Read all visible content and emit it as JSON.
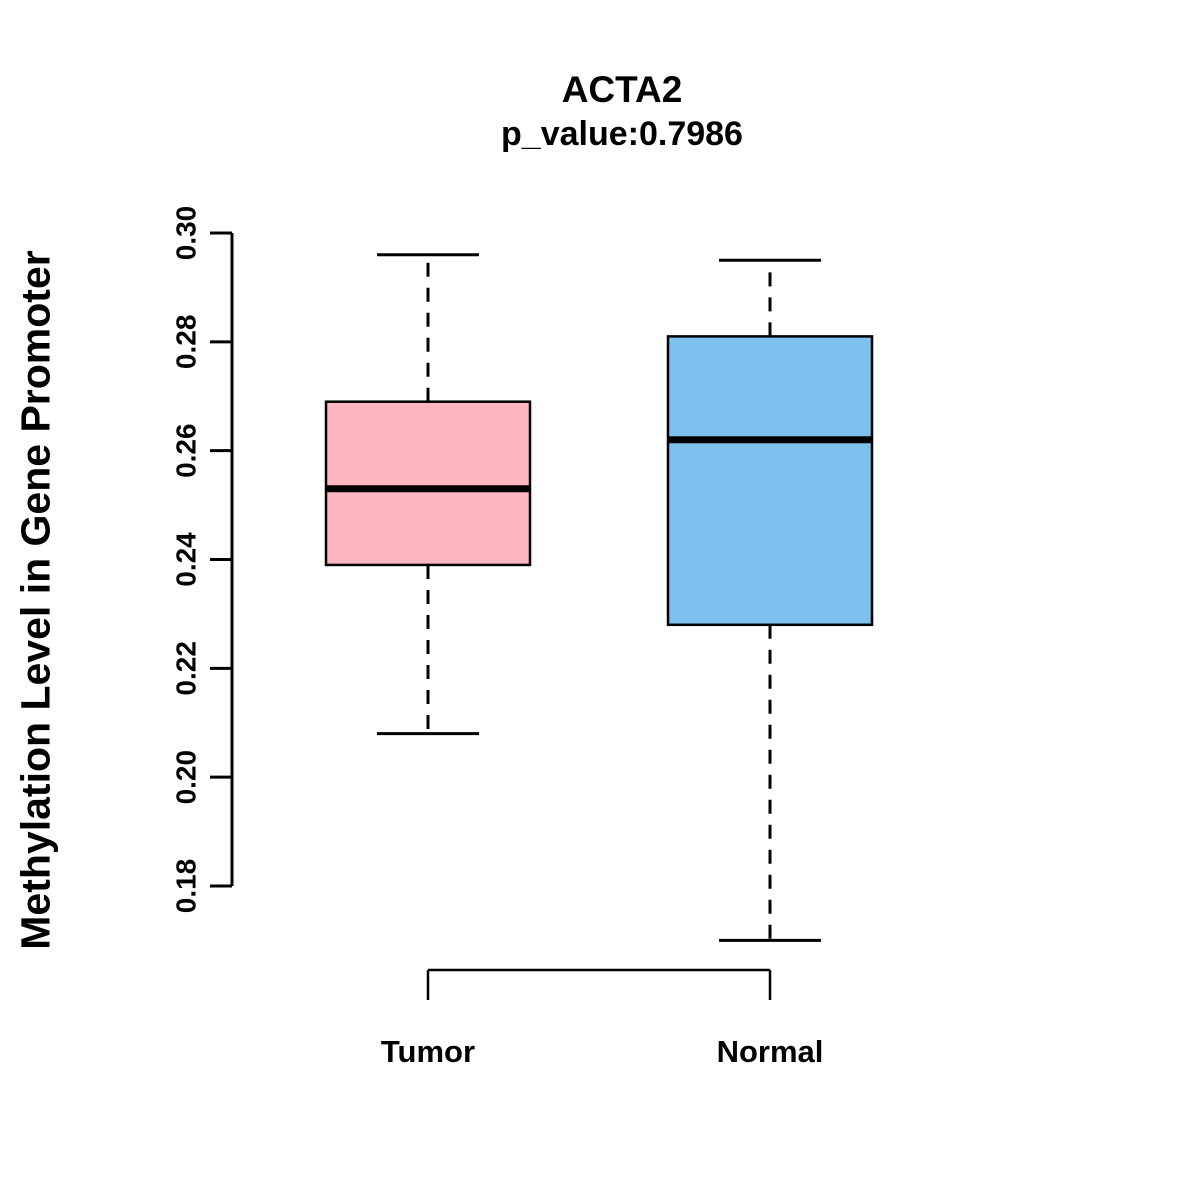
{
  "title": "ACTA2",
  "subtitle": "p_value:0.7986",
  "chart_data": {
    "type": "boxplot",
    "title": "ACTA2",
    "subtitle": "p_value:0.7986",
    "ylabel": "Methylation Level in Gene Promoter",
    "ylim": [
      0.18,
      0.3
    ],
    "yticks": [
      0.18,
      0.2,
      0.22,
      0.24,
      0.26,
      0.28,
      0.3
    ],
    "grid": false,
    "legend": "none",
    "groups": [
      {
        "label": "Tumor",
        "color": "#FFB6C1",
        "min": 0.208,
        "q1": 0.239,
        "median": 0.253,
        "q3": 0.269,
        "max": 0.296
      },
      {
        "label": "Normal",
        "color": "#7EC0EE",
        "min": 0.17,
        "q1": 0.228,
        "median": 0.262,
        "q3": 0.281,
        "max": 0.295
      }
    ]
  }
}
